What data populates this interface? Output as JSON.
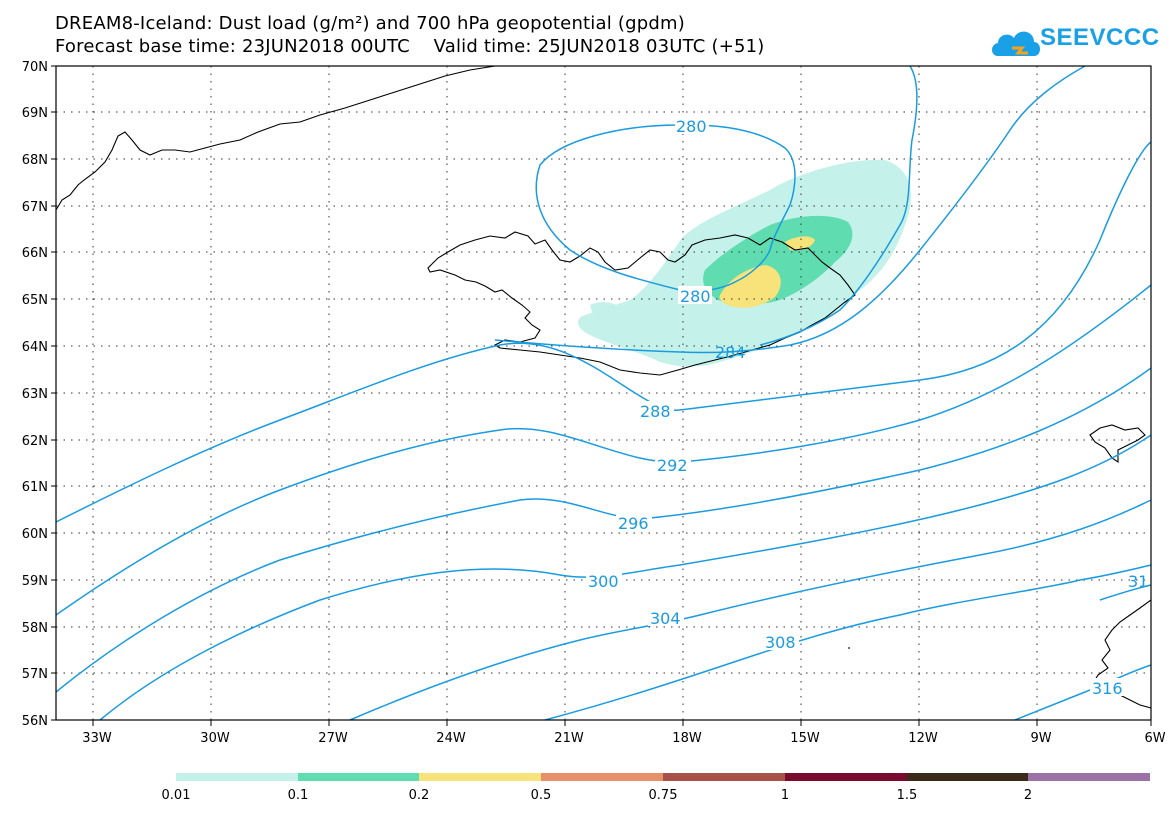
{
  "header": {
    "title": "DREAM8-Iceland: Dust load (g/m²) and 700 hPa geopotential (gpdm)",
    "subtitle": "Forecast base time: 23JUN2018 00UTC    Valid time: 25JUN2018 03UTC (+51)"
  },
  "logo": {
    "text": "SEEVCCC"
  },
  "map": {
    "lat_labels": [
      "70N",
      "69N",
      "68N",
      "67N",
      "66N",
      "65N",
      "64N",
      "63N",
      "62N",
      "61N",
      "60N",
      "59N",
      "58N",
      "57N",
      "56N"
    ],
    "lon_labels": [
      "33W",
      "30W",
      "27W",
      "24W",
      "21W",
      "18W",
      "15W",
      "12W",
      "9W",
      "6W"
    ],
    "contour_labels": [
      "280",
      "280",
      "284",
      "288",
      "292",
      "296",
      "300",
      "304",
      "308",
      "316",
      "31"
    ],
    "contour_color": "#1a9be0",
    "dust_colors": {
      "0.01": "#c4f1ea",
      "0.1": "#5fdcb0",
      "0.2": "#f7e37a"
    }
  },
  "colorbar": {
    "ticks": [
      "0.01",
      "0.1",
      "0.2",
      "0.5",
      "0.75",
      "1",
      "1.5",
      "2"
    ],
    "colors": [
      "#c4f1ea",
      "#5fdcb0",
      "#f7e37a",
      "#e8906a",
      "#a6524a",
      "#7a0a2e",
      "#3c2a18",
      "#9b72a6"
    ]
  }
}
